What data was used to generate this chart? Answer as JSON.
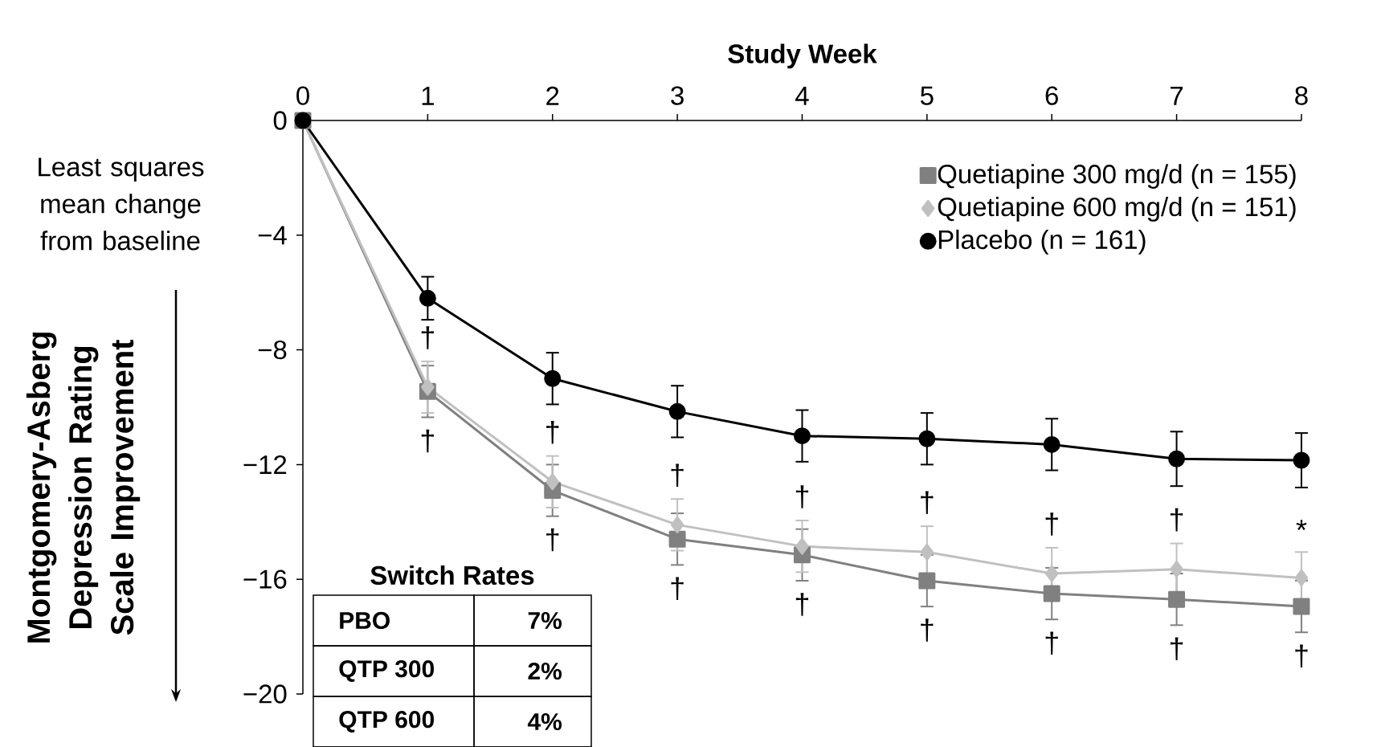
{
  "chart_data": {
    "type": "line",
    "xlabel": "Study Week",
    "ylabel": "Montgomery-Asberg Depression Rating Scale Improvement",
    "x": [
      0,
      1,
      2,
      3,
      4,
      5,
      6,
      7,
      8
    ],
    "xlim": [
      0,
      8
    ],
    "xticks": [
      0,
      1,
      2,
      3,
      4,
      5,
      6,
      7,
      8
    ],
    "ylim": [
      -20,
      0
    ],
    "yticks": [
      {
        "value": -20,
        "label": "−20"
      },
      {
        "value": -16,
        "label": "−16"
      },
      {
        "value": -12,
        "label": "−12"
      },
      {
        "value": -8,
        "label": "−8"
      },
      {
        "value": -4,
        "label": "−4"
      },
      {
        "value": 0,
        "label": "0"
      }
    ],
    "grid": false,
    "legend": "top right",
    "line_style": "solid",
    "series": [
      {
        "name": "Quetiapine 300 mg/d (n = 155)",
        "color": "#808080",
        "marker": "square",
        "values": [
          0,
          -9.45,
          -12.9,
          -14.6,
          -15.15,
          -16.05,
          -16.5,
          -16.7,
          -16.95
        ],
        "errors": [
          null,
          0.9,
          0.9,
          0.9,
          0.9,
          0.9,
          0.9,
          0.9,
          0.9
        ]
      },
      {
        "name": "Quetiapine 600 mg/d (n = 151)",
        "color": "#c0c0c0",
        "marker": "diamond",
        "values": [
          0,
          -9.3,
          -12.6,
          -14.1,
          -14.85,
          -15.05,
          -15.8,
          -15.65,
          -15.95
        ],
        "errors": [
          null,
          0.9,
          0.9,
          0.9,
          0.9,
          0.9,
          0.9,
          0.9,
          0.9
        ]
      },
      {
        "name": "Placebo (n = 161)",
        "color": "#000000",
        "marker": "circle",
        "values": [
          0,
          -6.2,
          -9.0,
          -10.15,
          -11.0,
          -11.1,
          -11.3,
          -11.8,
          -11.85
        ],
        "errors": [
          null,
          0.75,
          0.9,
          0.9,
          0.9,
          0.9,
          0.9,
          0.95,
          0.95
        ]
      }
    ],
    "annotations": [
      "Least squares mean change from baseline",
      "Switch Rates",
      "PBO",
      "7%",
      "QTP 300",
      "2%",
      "QTP 600",
      "4%",
      "†",
      "†",
      "†",
      "†",
      "†",
      "†",
      "†",
      "†",
      "†",
      "†",
      "†",
      "†",
      "†",
      "†",
      "*",
      "†"
    ]
  }
}
